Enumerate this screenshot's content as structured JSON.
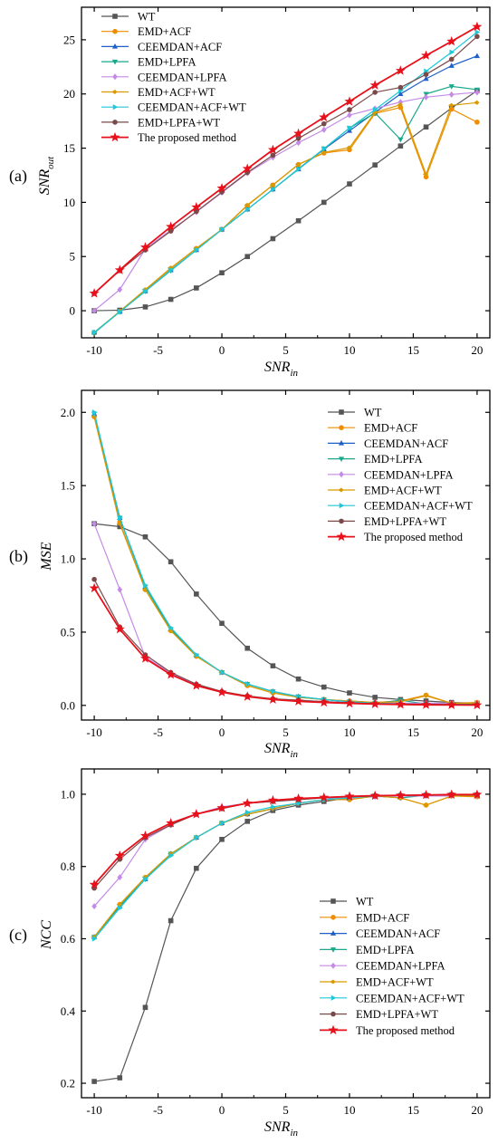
{
  "chart_data": [
    {
      "type": "line",
      "panel_label": "(a)",
      "ylabel_main": "SNR",
      "ylabel_sub": "out",
      "xlabel_main": "SNR",
      "xlabel_sub": "in",
      "xlim": [
        -11,
        21
      ],
      "ylim": [
        -2.5,
        28
      ],
      "xticks": [
        -10,
        -5,
        0,
        5,
        10,
        15,
        20
      ],
      "yticks": [
        0,
        5,
        10,
        15,
        20,
        25
      ],
      "tick_decimals": 0,
      "legend_position": "top-left",
      "x": [
        -10,
        -8,
        -6,
        -4,
        -2,
        0,
        2,
        4,
        6,
        8,
        10,
        12,
        14,
        16,
        18,
        20
      ],
      "series": [
        {
          "name": "WT",
          "color": "#555555",
          "marker": "square",
          "values": [
            0.0,
            0.05,
            0.35,
            1.05,
            2.1,
            3.5,
            5.0,
            6.65,
            8.3,
            10.0,
            11.7,
            13.45,
            15.2,
            16.95,
            18.7,
            20.3
          ]
        },
        {
          "name": "EMD+ACF",
          "color": "#f08c00",
          "marker": "circle",
          "values": [
            -2.05,
            -0.05,
            1.9,
            3.9,
            5.75,
            7.5,
            9.7,
            11.6,
            13.5,
            14.55,
            14.85,
            18.2,
            18.75,
            12.35,
            18.6,
            17.4
          ]
        },
        {
          "name": "CEEMDAN+ACF",
          "color": "#1f5fc8",
          "marker": "triangle-up",
          "values": [
            -2.0,
            -0.1,
            1.8,
            3.75,
            5.6,
            7.5,
            9.35,
            11.2,
            13.05,
            14.9,
            16.6,
            18.3,
            20.0,
            21.4,
            22.6,
            23.5
          ]
        },
        {
          "name": "EMD+LPFA",
          "color": "#1aa88a",
          "marker": "triangle-down",
          "values": [
            -2.05,
            -0.1,
            1.8,
            3.7,
            5.6,
            7.5,
            9.35,
            11.2,
            13.1,
            14.95,
            16.85,
            18.25,
            15.8,
            20.0,
            20.7,
            20.4
          ]
        },
        {
          "name": "CEEMDAN+LPFA",
          "color": "#c58ae6",
          "marker": "diamond",
          "values": [
            0.0,
            1.95,
            5.7,
            7.45,
            9.1,
            10.9,
            12.7,
            14.15,
            15.5,
            16.7,
            18.05,
            18.65,
            19.25,
            19.7,
            19.95,
            20.15
          ]
        },
        {
          "name": "EMD+ACF+WT",
          "color": "#d99a00",
          "marker": "diamond-left",
          "values": [
            -2.0,
            -0.05,
            1.95,
            3.95,
            5.75,
            7.5,
            9.75,
            11.6,
            13.5,
            14.6,
            15.05,
            18.3,
            19.0,
            12.6,
            18.95,
            19.2
          ]
        },
        {
          "name": "CEEMDAN+ACF+WT",
          "color": "#1ec8d8",
          "marker": "triangle-right",
          "values": [
            -2.0,
            -0.1,
            1.8,
            3.75,
            5.6,
            7.5,
            9.35,
            11.2,
            13.05,
            14.95,
            16.85,
            18.55,
            20.3,
            22.1,
            23.85,
            25.7
          ]
        },
        {
          "name": "EMD+LPFA+WT",
          "color": "#7a4a4a",
          "marker": "circle",
          "values": [
            1.6,
            3.7,
            5.6,
            7.35,
            9.15,
            10.95,
            12.75,
            14.35,
            15.9,
            17.25,
            18.55,
            20.15,
            20.6,
            21.8,
            23.2,
            25.3
          ]
        },
        {
          "name": "The proposed method",
          "color": "#e8101a",
          "marker": "star",
          "values": [
            1.6,
            3.75,
            5.85,
            7.75,
            9.55,
            11.3,
            13.1,
            14.85,
            16.35,
            17.85,
            19.3,
            20.8,
            22.15,
            23.55,
            24.85,
            26.2
          ]
        }
      ]
    },
    {
      "type": "line",
      "panel_label": "(b)",
      "ylabel_main": "MSE",
      "ylabel_sub": "",
      "xlabel_main": "SNR",
      "xlabel_sub": "in",
      "xlim": [
        -11,
        21
      ],
      "ylim": [
        -0.1,
        2.15
      ],
      "xticks": [
        -10,
        -5,
        0,
        5,
        10,
        15,
        20
      ],
      "yticks": [
        0.0,
        0.5,
        1.0,
        1.5,
        2.0
      ],
      "tick_decimals": 1,
      "legend_position": "top-right",
      "x": [
        -10,
        -8,
        -6,
        -4,
        -2,
        0,
        2,
        4,
        6,
        8,
        10,
        12,
        14,
        16,
        18,
        20
      ],
      "series": [
        {
          "name": "WT",
          "color": "#555555",
          "marker": "square",
          "values": [
            1.24,
            1.22,
            1.15,
            0.98,
            0.76,
            0.56,
            0.39,
            0.27,
            0.18,
            0.125,
            0.085,
            0.055,
            0.04,
            0.03,
            0.02,
            0.015
          ]
        },
        {
          "name": "EMD+ACF",
          "color": "#f08c00",
          "marker": "circle",
          "values": [
            1.97,
            1.25,
            0.79,
            0.51,
            0.335,
            0.225,
            0.135,
            0.085,
            0.055,
            0.04,
            0.03,
            0.02,
            0.03,
            0.07,
            0.015,
            0.02
          ]
        },
        {
          "name": "CEEMDAN+ACF",
          "color": "#1f5fc8",
          "marker": "triangle-up",
          "values": [
            1.99,
            1.28,
            0.81,
            0.52,
            0.34,
            0.225,
            0.145,
            0.095,
            0.06,
            0.04,
            0.025,
            0.015,
            0.01,
            0.008,
            0.005,
            0.004
          ]
        },
        {
          "name": "EMD+LPFA",
          "color": "#1aa88a",
          "marker": "triangle-down",
          "values": [
            1.99,
            1.28,
            0.81,
            0.52,
            0.34,
            0.225,
            0.145,
            0.095,
            0.06,
            0.04,
            0.025,
            0.015,
            0.035,
            0.01,
            0.008,
            0.008
          ]
        },
        {
          "name": "CEEMDAN+LPFA",
          "color": "#c58ae6",
          "marker": "diamond",
          "values": [
            1.24,
            0.79,
            0.33,
            0.22,
            0.14,
            0.09,
            0.06,
            0.045,
            0.035,
            0.025,
            0.02,
            0.02,
            0.015,
            0.015,
            0.015,
            0.015
          ]
        },
        {
          "name": "EMD+ACF+WT",
          "color": "#d99a00",
          "marker": "diamond-left",
          "values": [
            1.97,
            1.24,
            0.79,
            0.51,
            0.335,
            0.225,
            0.135,
            0.085,
            0.055,
            0.04,
            0.03,
            0.02,
            0.025,
            0.065,
            0.015,
            0.015
          ]
        },
        {
          "name": "CEEMDAN+ACF+WT",
          "color": "#1ec8d8",
          "marker": "triangle-right",
          "values": [
            2.0,
            1.28,
            0.82,
            0.53,
            0.345,
            0.225,
            0.145,
            0.095,
            0.06,
            0.04,
            0.025,
            0.015,
            0.01,
            0.006,
            0.004,
            0.003
          ]
        },
        {
          "name": "EMD+LPFA+WT",
          "color": "#7a4a4a",
          "marker": "circle",
          "values": [
            0.86,
            0.535,
            0.345,
            0.225,
            0.145,
            0.095,
            0.065,
            0.045,
            0.035,
            0.025,
            0.018,
            0.012,
            0.01,
            0.008,
            0.006,
            0.005
          ]
        },
        {
          "name": "The proposed method",
          "color": "#e8101a",
          "marker": "star",
          "values": [
            0.8,
            0.52,
            0.32,
            0.21,
            0.135,
            0.09,
            0.06,
            0.04,
            0.028,
            0.02,
            0.014,
            0.009,
            0.006,
            0.004,
            0.003,
            0.002
          ]
        }
      ]
    },
    {
      "type": "line",
      "panel_label": "(c)",
      "ylabel_main": "NCC",
      "ylabel_sub": "",
      "xlabel_main": "SNR",
      "xlabel_sub": "in",
      "xlim": [
        -11,
        21
      ],
      "ylim": [
        0.16,
        1.07
      ],
      "xticks": [
        -10,
        -5,
        0,
        5,
        10,
        15,
        20
      ],
      "yticks": [
        0.2,
        0.4,
        0.6,
        0.8,
        1.0
      ],
      "tick_decimals": 1,
      "legend_position": "bottom-right",
      "x": [
        -10,
        -8,
        -6,
        -4,
        -2,
        0,
        2,
        4,
        6,
        8,
        10,
        12,
        14,
        16,
        18,
        20
      ],
      "series": [
        {
          "name": "WT",
          "color": "#555555",
          "marker": "square",
          "values": [
            0.205,
            0.215,
            0.41,
            0.65,
            0.795,
            0.875,
            0.925,
            0.955,
            0.97,
            0.98,
            0.99,
            0.995,
            0.995,
            0.997,
            0.998,
            0.998
          ]
        },
        {
          "name": "EMD+ACF",
          "color": "#f08c00",
          "marker": "circle",
          "values": [
            0.605,
            0.695,
            0.77,
            0.835,
            0.88,
            0.92,
            0.945,
            0.96,
            0.975,
            0.985,
            0.985,
            0.995,
            0.99,
            0.97,
            0.995,
            0.993
          ]
        },
        {
          "name": "CEEMDAN+ACF",
          "color": "#1f5fc8",
          "marker": "triangle-up",
          "values": [
            0.605,
            0.69,
            0.765,
            0.835,
            0.88,
            0.92,
            0.945,
            0.96,
            0.975,
            0.985,
            0.99,
            0.995,
            0.997,
            0.998,
            0.999,
            0.999
          ]
        },
        {
          "name": "EMD+LPFA",
          "color": "#1aa88a",
          "marker": "triangle-down",
          "values": [
            0.605,
            0.69,
            0.765,
            0.835,
            0.88,
            0.92,
            0.945,
            0.96,
            0.975,
            0.985,
            0.99,
            0.995,
            0.99,
            0.997,
            0.998,
            0.998
          ]
        },
        {
          "name": "CEEMDAN+LPFA",
          "color": "#c58ae6",
          "marker": "diamond",
          "values": [
            0.69,
            0.77,
            0.875,
            0.915,
            0.945,
            0.965,
            0.975,
            0.98,
            0.985,
            0.99,
            0.99,
            0.993,
            0.995,
            0.995,
            0.995,
            0.995
          ]
        },
        {
          "name": "EMD+ACF+WT",
          "color": "#d99a00",
          "marker": "diamond-left",
          "values": [
            0.605,
            0.695,
            0.77,
            0.835,
            0.88,
            0.92,
            0.945,
            0.96,
            0.975,
            0.985,
            0.985,
            0.995,
            0.99,
            0.97,
            0.995,
            0.995
          ]
        },
        {
          "name": "CEEMDAN+ACF+WT",
          "color": "#1ec8d8",
          "marker": "triangle-right",
          "values": [
            0.6,
            0.685,
            0.765,
            0.83,
            0.88,
            0.92,
            0.95,
            0.965,
            0.975,
            0.985,
            0.99,
            0.995,
            0.997,
            0.998,
            0.999,
            0.999
          ]
        },
        {
          "name": "EMD+LPFA+WT",
          "color": "#7a4a4a",
          "marker": "circle",
          "values": [
            0.74,
            0.82,
            0.88,
            0.915,
            0.945,
            0.96,
            0.975,
            0.98,
            0.985,
            0.99,
            0.993,
            0.995,
            0.997,
            0.997,
            0.998,
            0.998
          ]
        },
        {
          "name": "The proposed method",
          "color": "#e8101a",
          "marker": "star",
          "values": [
            0.75,
            0.83,
            0.885,
            0.92,
            0.945,
            0.962,
            0.975,
            0.983,
            0.988,
            0.991,
            0.994,
            0.996,
            0.997,
            0.998,
            0.999,
            0.999
          ]
        }
      ]
    }
  ]
}
